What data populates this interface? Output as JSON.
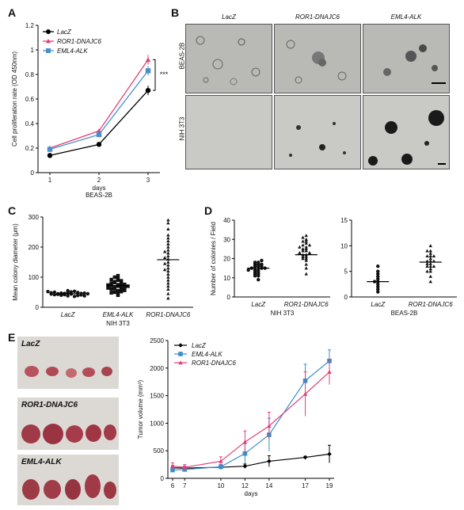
{
  "panels": {
    "A": {
      "label": "A",
      "ylabel": "Cell proliferation rate (OD 450nm)",
      "xlabel": "days",
      "subtitle": "BEAS-2B",
      "significance": "***",
      "legend": [
        "LacZ",
        "ROR1-DNAJC6",
        "EML4-ALK"
      ],
      "xticks": [
        "1",
        "2",
        "3"
      ],
      "yticks": [
        "0",
        "0.2",
        "0.4",
        "0.6",
        "0.8",
        "1",
        "1.2"
      ]
    },
    "B": {
      "label": "B",
      "columns": [
        "LacZ",
        "ROR1-DNAJC6",
        "EML4-ALK"
      ],
      "rows": [
        "BEAS-2B",
        "NIH 3T3"
      ]
    },
    "C": {
      "label": "C",
      "ylabel": "Mean colony diameter (μm)",
      "yticks": [
        "0",
        "100",
        "200",
        "300"
      ],
      "categories": [
        "LacZ",
        "EML4-ALK",
        "ROR1-DNAJC6"
      ],
      "subtitle": "NIH 3T3"
    },
    "D": {
      "label": "D",
      "ylabel": "Number of colonies / Field",
      "left": {
        "categories": [
          "LacZ",
          "ROR1-DNAJC6"
        ],
        "subtitle": "NIH 3T3",
        "yticks": [
          "0",
          "10",
          "20",
          "30",
          "40"
        ]
      },
      "right": {
        "categories": [
          "LacZ",
          "ROR1-DNAJC6"
        ],
        "subtitle": "BEAS-2B",
        "yticks": [
          "0",
          "5",
          "10",
          "15"
        ]
      }
    },
    "E": {
      "label": "E",
      "photo_labels": [
        "LacZ",
        "ROR1-DNAJC6",
        "EML4-ALK"
      ],
      "ylabel": "Tumor volume (mm³)",
      "xlabel": "days",
      "legend": [
        "LacZ",
        "EML4-ALK",
        "ROR1-DNAJC6"
      ],
      "xticks": [
        "6",
        "7",
        "10",
        "12",
        "14",
        "17",
        "19"
      ],
      "yticks": [
        "0",
        "500",
        "1000",
        "1500",
        "2000",
        "2500"
      ]
    }
  },
  "chart_data": [
    {
      "panel": "A",
      "type": "line",
      "x": [
        1,
        2,
        3
      ],
      "series": [
        {
          "name": "LacZ",
          "values": [
            0.14,
            0.23,
            0.67
          ],
          "color": "#000000",
          "marker": "circle"
        },
        {
          "name": "ROR1-DNAJC6",
          "values": [
            0.2,
            0.34,
            0.92
          ],
          "color": "#e0407a",
          "marker": "triangle"
        },
        {
          "name": "EML4-ALK",
          "values": [
            0.19,
            0.31,
            0.83
          ],
          "color": "#4a8fc8",
          "marker": "square"
        }
      ],
      "ylim": [
        0,
        1.2
      ],
      "xlabel": "days",
      "ylabel": "Cell proliferation rate (OD 450nm)"
    },
    {
      "panel": "C",
      "type": "scatter",
      "categories": [
        "LacZ",
        "EML4-ALK",
        "ROR1-DNAJC6"
      ],
      "series": [
        {
          "name": "LacZ",
          "values": [
            48,
            38,
            42,
            46,
            51,
            44,
            40,
            47,
            53,
            36,
            45,
            49,
            43,
            39,
            50,
            46,
            42,
            48,
            55,
            41,
            44,
            47,
            52,
            38,
            45
          ],
          "mean": 45
        },
        {
          "name": "EML4-ALK",
          "values": [
            40,
            55,
            62,
            70,
            75,
            82,
            90,
            95,
            100,
            105,
            45,
            50,
            58,
            65,
            68,
            72,
            78,
            85,
            88,
            60,
            52,
            66,
            74,
            80,
            92,
            48,
            56,
            64,
            70,
            76
          ],
          "mean": 72
        },
        {
          "name": "ROR1-DNAJC6",
          "values": [
            30,
            45,
            60,
            80,
            100,
            110,
            120,
            130,
            140,
            150,
            160,
            170,
            180,
            190,
            200,
            210,
            220,
            240,
            260,
            280,
            290,
            70,
            90,
            125,
            145,
            165,
            185,
            230
          ],
          "mean": 158
        }
      ],
      "ylim": [
        0,
        300
      ],
      "ylabel": "Mean colony diameter (μm)"
    },
    {
      "panel": "D-left",
      "type": "scatter",
      "categories": [
        "LacZ",
        "ROR1-DNAJC6"
      ],
      "series": [
        {
          "name": "LacZ",
          "values": [
            9,
            11,
            12,
            13,
            14,
            14,
            15,
            15,
            16,
            16,
            17,
            17,
            18,
            18,
            19,
            13,
            12,
            15,
            16,
            17,
            14,
            11
          ],
          "mean": 15
        },
        {
          "name": "ROR1-DNAJC6",
          "values": [
            12,
            15,
            17,
            19,
            20,
            21,
            22,
            22,
            23,
            24,
            25,
            26,
            27,
            28,
            29,
            30,
            31,
            32,
            20,
            23,
            25,
            27,
            21,
            24,
            26,
            29
          ],
          "mean": 22
        }
      ],
      "ylim": [
        0,
        40
      ],
      "ylabel": "Number of colonies / Field"
    },
    {
      "panel": "D-right",
      "type": "scatter",
      "categories": [
        "LacZ",
        "ROR1-DNAJC6"
      ],
      "series": [
        {
          "name": "LacZ",
          "values": [
            1,
            1.5,
            2,
            2.5,
            3,
            3,
            3.5,
            4,
            4.5,
            5,
            6
          ],
          "mean": 3
        },
        {
          "name": "ROR1-DNAJC6",
          "values": [
            3,
            4,
            5,
            5.5,
            6,
            6,
            6.5,
            7,
            7,
            7.5,
            8,
            8,
            8.5,
            9,
            10,
            6.5,
            7,
            5,
            6,
            8,
            9
          ],
          "mean": 6.8
        }
      ],
      "ylim": [
        0,
        15
      ]
    },
    {
      "panel": "E",
      "type": "line",
      "categories": [
        "6",
        "7",
        "10",
        "12",
        "14",
        "17",
        "19"
      ],
      "series": [
        {
          "name": "LacZ",
          "values": [
            190,
            185,
            200,
            220,
            310,
            380,
            440
          ],
          "err": [
            40,
            30,
            30,
            40,
            100,
            20,
            160
          ],
          "color": "#000000",
          "marker": "diamond"
        },
        {
          "name": "EML4-ALK",
          "values": [
            150,
            160,
            210,
            450,
            790,
            1770,
            2130
          ],
          "err": [
            40,
            30,
            40,
            180,
            300,
            300,
            200
          ],
          "color": "#3a8ec9",
          "marker": "square"
        },
        {
          "name": "ROR1-DNAJC6",
          "values": [
            220,
            200,
            310,
            660,
            950,
            1530,
            1930
          ],
          "err": [
            60,
            50,
            80,
            200,
            250,
            400,
            230
          ],
          "color": "#e0407a",
          "marker": "triangle"
        }
      ],
      "ylim": [
        0,
        2500
      ],
      "xlabel": "days",
      "ylabel": "Tumor volume (mm³)"
    }
  ]
}
